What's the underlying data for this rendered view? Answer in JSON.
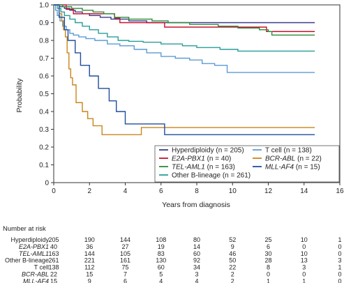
{
  "chart_data": {
    "type": "line",
    "subtype": "step",
    "xlabel": "Years from diagnosis",
    "ylabel": "Probability",
    "xlim": [
      0,
      16
    ],
    "ylim": [
      0,
      1.0
    ],
    "xticks": [
      0,
      2,
      4,
      6,
      8,
      10,
      12,
      14,
      16
    ],
    "yticks": [
      "0",
      "0.1",
      "0.2",
      "0.3",
      "0.4",
      "0.5",
      "0.6",
      "0.7",
      "0.8",
      "0.9",
      "1.0"
    ],
    "grid": false,
    "legend_position": "bottom-right",
    "series": [
      {
        "name": "Hyperdiploidy",
        "n_label": "(n = 205)",
        "italic": false,
        "color": "#3c3a8c",
        "points": [
          [
            0,
            1.0
          ],
          [
            0.3,
            0.99
          ],
          [
            0.6,
            0.98
          ],
          [
            0.9,
            0.97
          ],
          [
            1.2,
            0.96
          ],
          [
            1.6,
            0.95
          ],
          [
            2.0,
            0.94
          ],
          [
            2.6,
            0.93
          ],
          [
            3.2,
            0.92
          ],
          [
            4.2,
            0.91
          ],
          [
            5.2,
            0.9
          ],
          [
            14.6,
            0.9
          ]
        ]
      },
      {
        "name": "E2A-PBX1",
        "n_label": "(n = 40)",
        "italic": true,
        "color": "#c8102e",
        "points": [
          [
            0,
            1.0
          ],
          [
            0.7,
            0.975
          ],
          [
            1.1,
            0.95
          ],
          [
            3.4,
            0.925
          ],
          [
            3.7,
            0.9
          ],
          [
            6.2,
            0.875
          ],
          [
            11.9,
            0.875
          ],
          [
            11.9,
            0.85
          ],
          [
            14.6,
            0.85
          ]
        ]
      },
      {
        "name": "TEL-AML1",
        "n_label": "(n = 163)",
        "italic": true,
        "color": "#2e8b3a",
        "points": [
          [
            0,
            1.0
          ],
          [
            0.5,
            0.99
          ],
          [
            1.0,
            0.98
          ],
          [
            1.6,
            0.97
          ],
          [
            2.2,
            0.96
          ],
          [
            2.8,
            0.95
          ],
          [
            3.4,
            0.93
          ],
          [
            4.2,
            0.92
          ],
          [
            5.5,
            0.91
          ],
          [
            6.4,
            0.9
          ],
          [
            7.6,
            0.89
          ],
          [
            9.2,
            0.88
          ],
          [
            10.3,
            0.87
          ],
          [
            11.5,
            0.86
          ],
          [
            12.0,
            0.85
          ],
          [
            12.2,
            0.83
          ],
          [
            14.6,
            0.83
          ]
        ]
      },
      {
        "name": "Other B-lineage",
        "n_label": "(n = 261)",
        "italic": false,
        "color": "#2a9d9a",
        "points": [
          [
            0,
            1.0
          ],
          [
            0.2,
            0.98
          ],
          [
            0.4,
            0.96
          ],
          [
            0.6,
            0.94
          ],
          [
            0.9,
            0.92
          ],
          [
            1.2,
            0.9
          ],
          [
            1.6,
            0.88
          ],
          [
            2.0,
            0.86
          ],
          [
            2.5,
            0.84
          ],
          [
            3.0,
            0.82
          ],
          [
            3.6,
            0.8
          ],
          [
            4.2,
            0.795
          ],
          [
            5.0,
            0.79
          ],
          [
            6.0,
            0.78
          ],
          [
            7.2,
            0.77
          ],
          [
            8.0,
            0.76
          ],
          [
            9.3,
            0.75
          ],
          [
            10.3,
            0.74
          ],
          [
            14.6,
            0.74
          ]
        ]
      },
      {
        "name": "T cell",
        "n_label": "(n = 138)",
        "italic": false,
        "color": "#5b9bd5",
        "points": [
          [
            0,
            1.0
          ],
          [
            0.1,
            0.97
          ],
          [
            0.2,
            0.94
          ],
          [
            0.35,
            0.91
          ],
          [
            0.5,
            0.88
          ],
          [
            0.7,
            0.86
          ],
          [
            0.9,
            0.84
          ],
          [
            1.1,
            0.83
          ],
          [
            1.4,
            0.82
          ],
          [
            1.8,
            0.81
          ],
          [
            2.3,
            0.8
          ],
          [
            3.0,
            0.78
          ],
          [
            3.7,
            0.77
          ],
          [
            4.5,
            0.75
          ],
          [
            5.2,
            0.73
          ],
          [
            6.0,
            0.71
          ],
          [
            6.8,
            0.7
          ],
          [
            7.6,
            0.69
          ],
          [
            8.3,
            0.67
          ],
          [
            9.0,
            0.66
          ],
          [
            9.7,
            0.62
          ],
          [
            14.6,
            0.62
          ]
        ]
      },
      {
        "name": "BCR-ABL",
        "n_label": "(n = 22)",
        "italic": true,
        "color": "#c8861b",
        "points": [
          [
            0,
            1.0
          ],
          [
            0.3,
            0.95
          ],
          [
            0.45,
            0.91
          ],
          [
            0.55,
            0.86
          ],
          [
            0.65,
            0.82
          ],
          [
            0.75,
            0.73
          ],
          [
            0.85,
            0.64
          ],
          [
            0.95,
            0.59
          ],
          [
            1.05,
            0.55
          ],
          [
            1.25,
            0.45
          ],
          [
            1.6,
            0.4
          ],
          [
            1.9,
            0.36
          ],
          [
            2.2,
            0.32
          ],
          [
            2.6,
            0.32
          ],
          [
            2.7,
            0.27
          ],
          [
            4.9,
            0.27
          ],
          [
            4.9,
            0.31
          ],
          [
            14.6,
            0.31
          ]
        ]
      },
      {
        "name": "MLL-AF4",
        "n_label": "(n = 15)",
        "italic": true,
        "color": "#1f4e9c",
        "points": [
          [
            0,
            1.0
          ],
          [
            0.3,
            0.93
          ],
          [
            0.6,
            0.86
          ],
          [
            0.8,
            0.8
          ],
          [
            1.2,
            0.73
          ],
          [
            1.5,
            0.66
          ],
          [
            2.0,
            0.6
          ],
          [
            2.5,
            0.53
          ],
          [
            3.1,
            0.46
          ],
          [
            3.5,
            0.4
          ],
          [
            4.0,
            0.33
          ],
          [
            5.1,
            0.33
          ],
          [
            6.2,
            0.27
          ],
          [
            14.6,
            0.27
          ]
        ]
      }
    ],
    "risk_table": {
      "title": "Number at risk",
      "times": [
        0,
        2,
        4,
        6,
        8,
        10,
        12,
        14,
        16
      ],
      "rows": [
        {
          "label": "Hyperdiploidy",
          "italic": false,
          "values": [
            "205",
            "190",
            "144",
            "108",
            "80",
            "52",
            "25",
            "10",
            "1"
          ]
        },
        {
          "label": "E2A-PBX1",
          "italic": true,
          "values": [
            "40",
            "36",
            "27",
            "19",
            "14",
            "9",
            "6",
            "0",
            "0"
          ]
        },
        {
          "label": "TEL-AML1",
          "italic": true,
          "values": [
            "163",
            "144",
            "105",
            "83",
            "60",
            "46",
            "30",
            "10",
            "0"
          ]
        },
        {
          "label": "Other B-lineage",
          "italic": false,
          "values": [
            "261",
            "221",
            "161",
            "130",
            "92",
            "50",
            "28",
            "13",
            "3"
          ]
        },
        {
          "label": "T cell",
          "italic": false,
          "values": [
            "138",
            "112",
            "75",
            "60",
            "34",
            "22",
            "8",
            "3",
            "1"
          ]
        },
        {
          "label": "BCR-ABL",
          "italic": true,
          "values": [
            "22",
            "15",
            "7",
            "5",
            "3",
            "2",
            "0",
            "0",
            "0"
          ]
        },
        {
          "label": "MLL-AF4",
          "italic": true,
          "values": [
            "15",
            "9",
            "6",
            "4",
            "4",
            "2",
            "1",
            "1",
            "0"
          ]
        }
      ]
    }
  }
}
